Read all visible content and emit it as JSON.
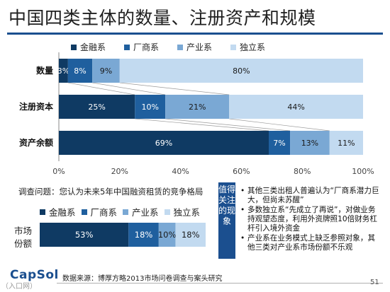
{
  "title": "中国四类主体的数量、注册资产和规模",
  "legend": [
    {
      "name": "金融系",
      "color": "#0f3a63"
    },
    {
      "name": "厂商系",
      "color": "#1f5f9e"
    },
    {
      "name": "产业系",
      "color": "#7aa8d4"
    },
    {
      "name": "独立系",
      "color": "#c2daf0"
    }
  ],
  "chart_data": [
    {
      "type": "bar",
      "orientation": "horizontal-stacked-100",
      "categories": [
        "数量",
        "注册资本",
        "资产余额"
      ],
      "series": [
        {
          "name": "金融系",
          "values": [
            3,
            25,
            69
          ],
          "labels": [
            "3%",
            "25%",
            "69%"
          ]
        },
        {
          "name": "厂商系",
          "values": [
            8,
            10,
            7
          ],
          "labels": [
            "8%",
            "10%",
            "7%"
          ]
        },
        {
          "name": "产业系",
          "values": [
            9,
            21,
            13
          ],
          "labels": [
            "9%",
            "21%",
            "13%"
          ]
        },
        {
          "name": "独立系",
          "values": [
            80,
            44,
            11
          ],
          "labels": [
            "80%",
            "44%",
            "11%"
          ]
        }
      ],
      "xlim": [
        0,
        100
      ],
      "xticks": [
        "0%",
        "20%",
        "40%",
        "60%",
        "80%",
        "100%"
      ],
      "grid": false,
      "legend_position": "top"
    },
    {
      "type": "bar",
      "orientation": "horizontal-stacked-100",
      "categories": [
        "市场份额"
      ],
      "series": [
        {
          "name": "金融系",
          "values": [
            53
          ],
          "labels": [
            "53%"
          ]
        },
        {
          "name": "厂商系",
          "values": [
            18
          ],
          "labels": [
            "18%"
          ]
        },
        {
          "name": "产业系",
          "values": [
            10
          ],
          "labels": [
            "10%"
          ]
        },
        {
          "name": "独立系",
          "values": [
            18
          ],
          "labels": [
            "18%"
          ]
        }
      ],
      "legend_position": "top"
    }
  ],
  "question": "调查问题：您认为未来5年中国融资租赁的竞争格局",
  "share_label": {
    "line1": "市场",
    "line2": "份额"
  },
  "note_label": "值得关注的现象",
  "bullets": [
    "其他三类出租人普遍认为“厂商系潜力巨大，但尚未苏醒”",
    "多数独立系“先成立了再说”，对做业务持观望态度，利用外资牌照10倍财务杠杆引入境外资金",
    "产业系在业务模式上缺乏参照对象，其他三类对产业系市场份额不乐观"
  ],
  "logo": "CapSol",
  "source": "数据来源：博厚方略2013市场问卷调查与案头研究",
  "page_number": "51",
  "watermark": "（入口网）"
}
